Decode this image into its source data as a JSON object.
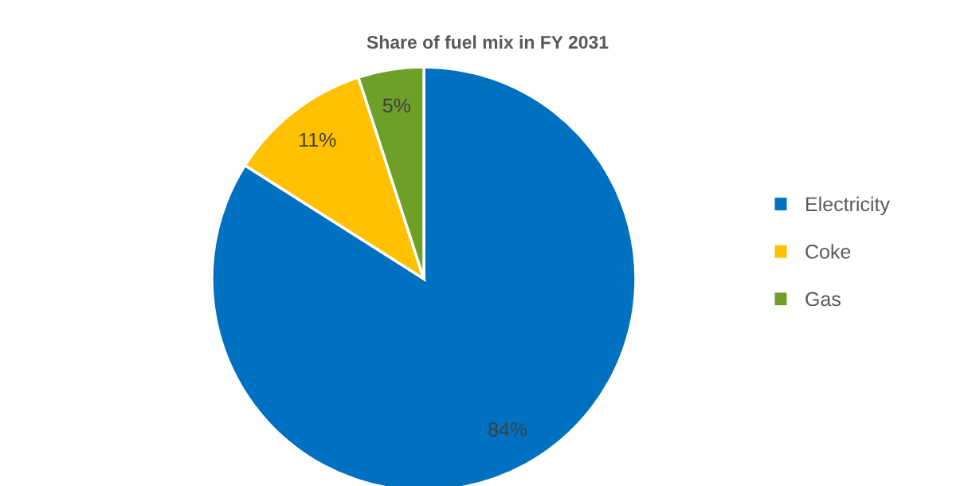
{
  "chart_data": {
    "type": "pie",
    "title": "Share of fuel mix in FY 2031",
    "categories": [
      "Electricity",
      "Coke",
      "Gas"
    ],
    "values": [
      84,
      11,
      5
    ],
    "colors": [
      "#0070c0",
      "#ffc000",
      "#6e9f29"
    ],
    "value_labels": [
      "84%",
      "11%",
      "5%"
    ],
    "legend": "right"
  }
}
